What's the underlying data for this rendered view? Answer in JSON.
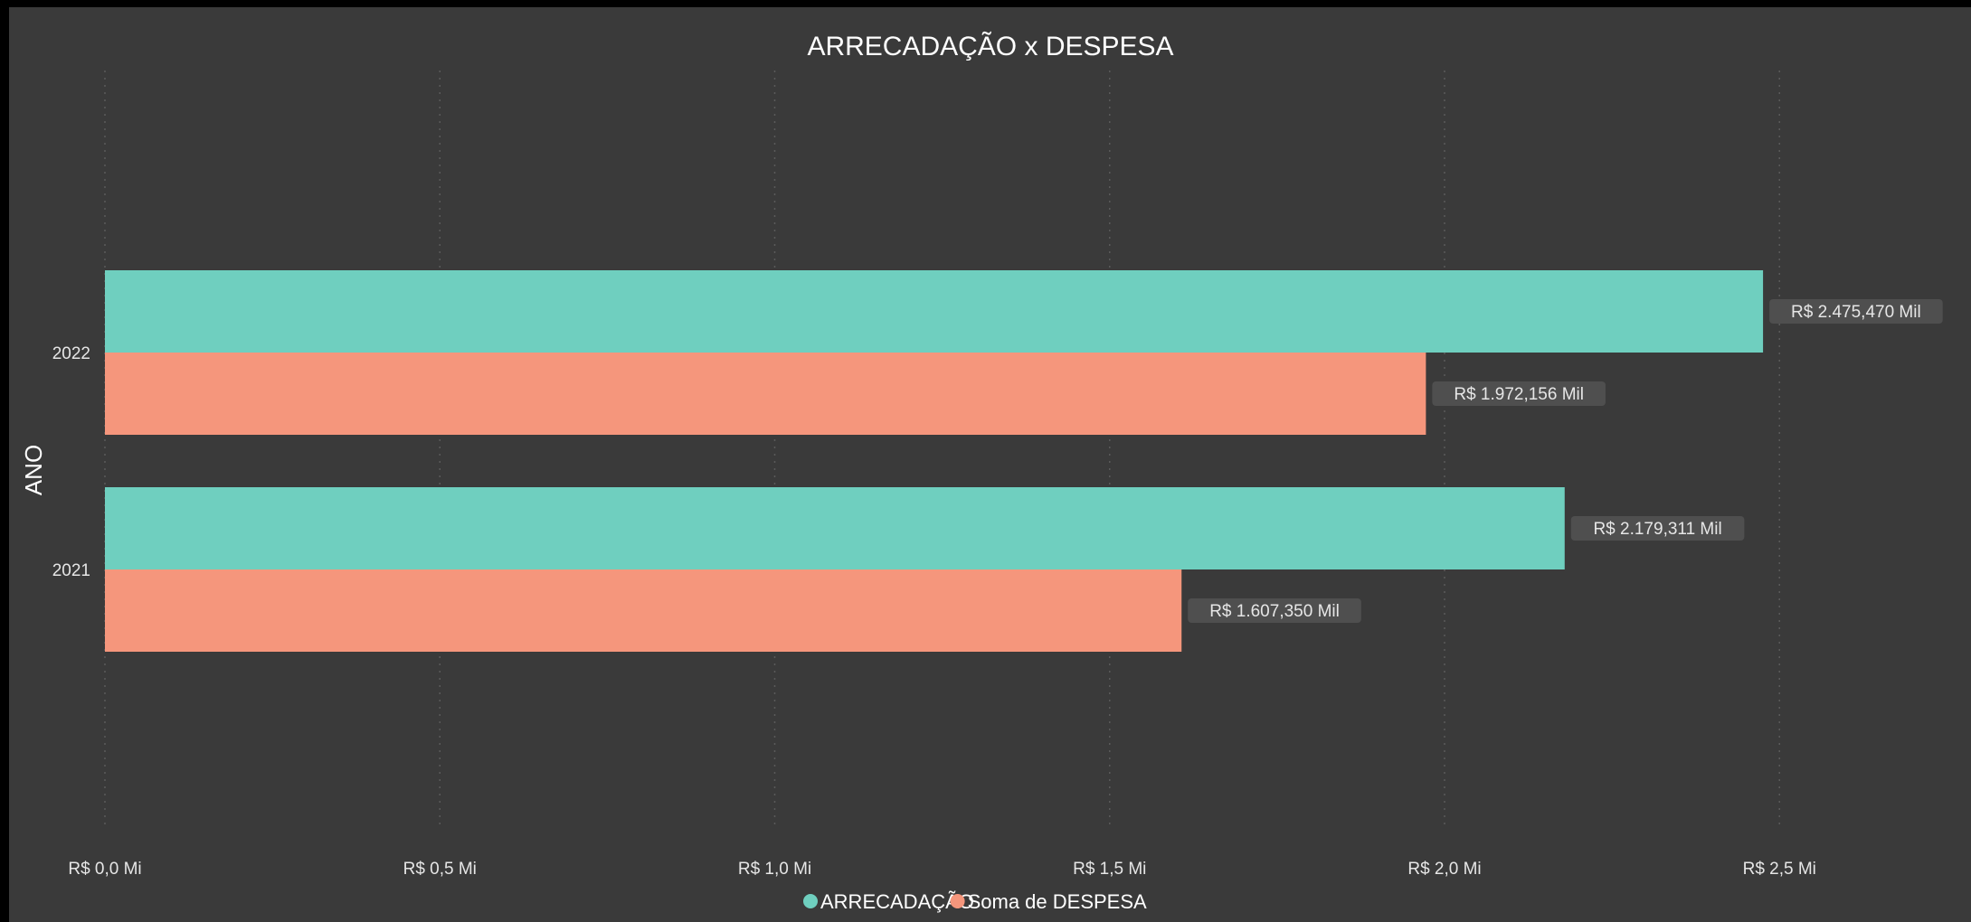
{
  "chart_data": {
    "type": "bar",
    "orientation": "horizontal",
    "title": "ARRECADAÇÃO x DESPESA",
    "ylabel": "ANO",
    "xlabel": "",
    "categories": [
      "2022",
      "2021"
    ],
    "series": [
      {
        "name": "ARRECADAÇÃO",
        "color": "#6fcfbf",
        "values": [
          2475470,
          2179311
        ],
        "labels": [
          "R$ 2.475,470 Mil",
          "R$ 2.179,311 Mil"
        ]
      },
      {
        "name": "Soma de DESPESA",
        "color": "#f5967c",
        "values": [
          1972156,
          1607350
        ],
        "labels": [
          "R$ 1.972,156 Mil",
          "R$ 1.607,350 Mil"
        ]
      }
    ],
    "xlim": [
      0,
      2700000
    ],
    "xticks": [
      0,
      500000,
      1000000,
      1500000,
      2000000,
      2500000
    ],
    "xtick_labels": [
      "R$ 0,0 Mi",
      "R$ 0,5 Mi",
      "R$ 1,0 Mi",
      "R$ 1,5 Mi",
      "R$ 2,0 Mi",
      "R$ 2,5 Mi"
    ],
    "grid": "vertical",
    "legend_position": "bottom-center",
    "colors": {
      "background": "#3a3a3a",
      "label_box": "#4f4f4f",
      "text": "#ffffff"
    }
  }
}
